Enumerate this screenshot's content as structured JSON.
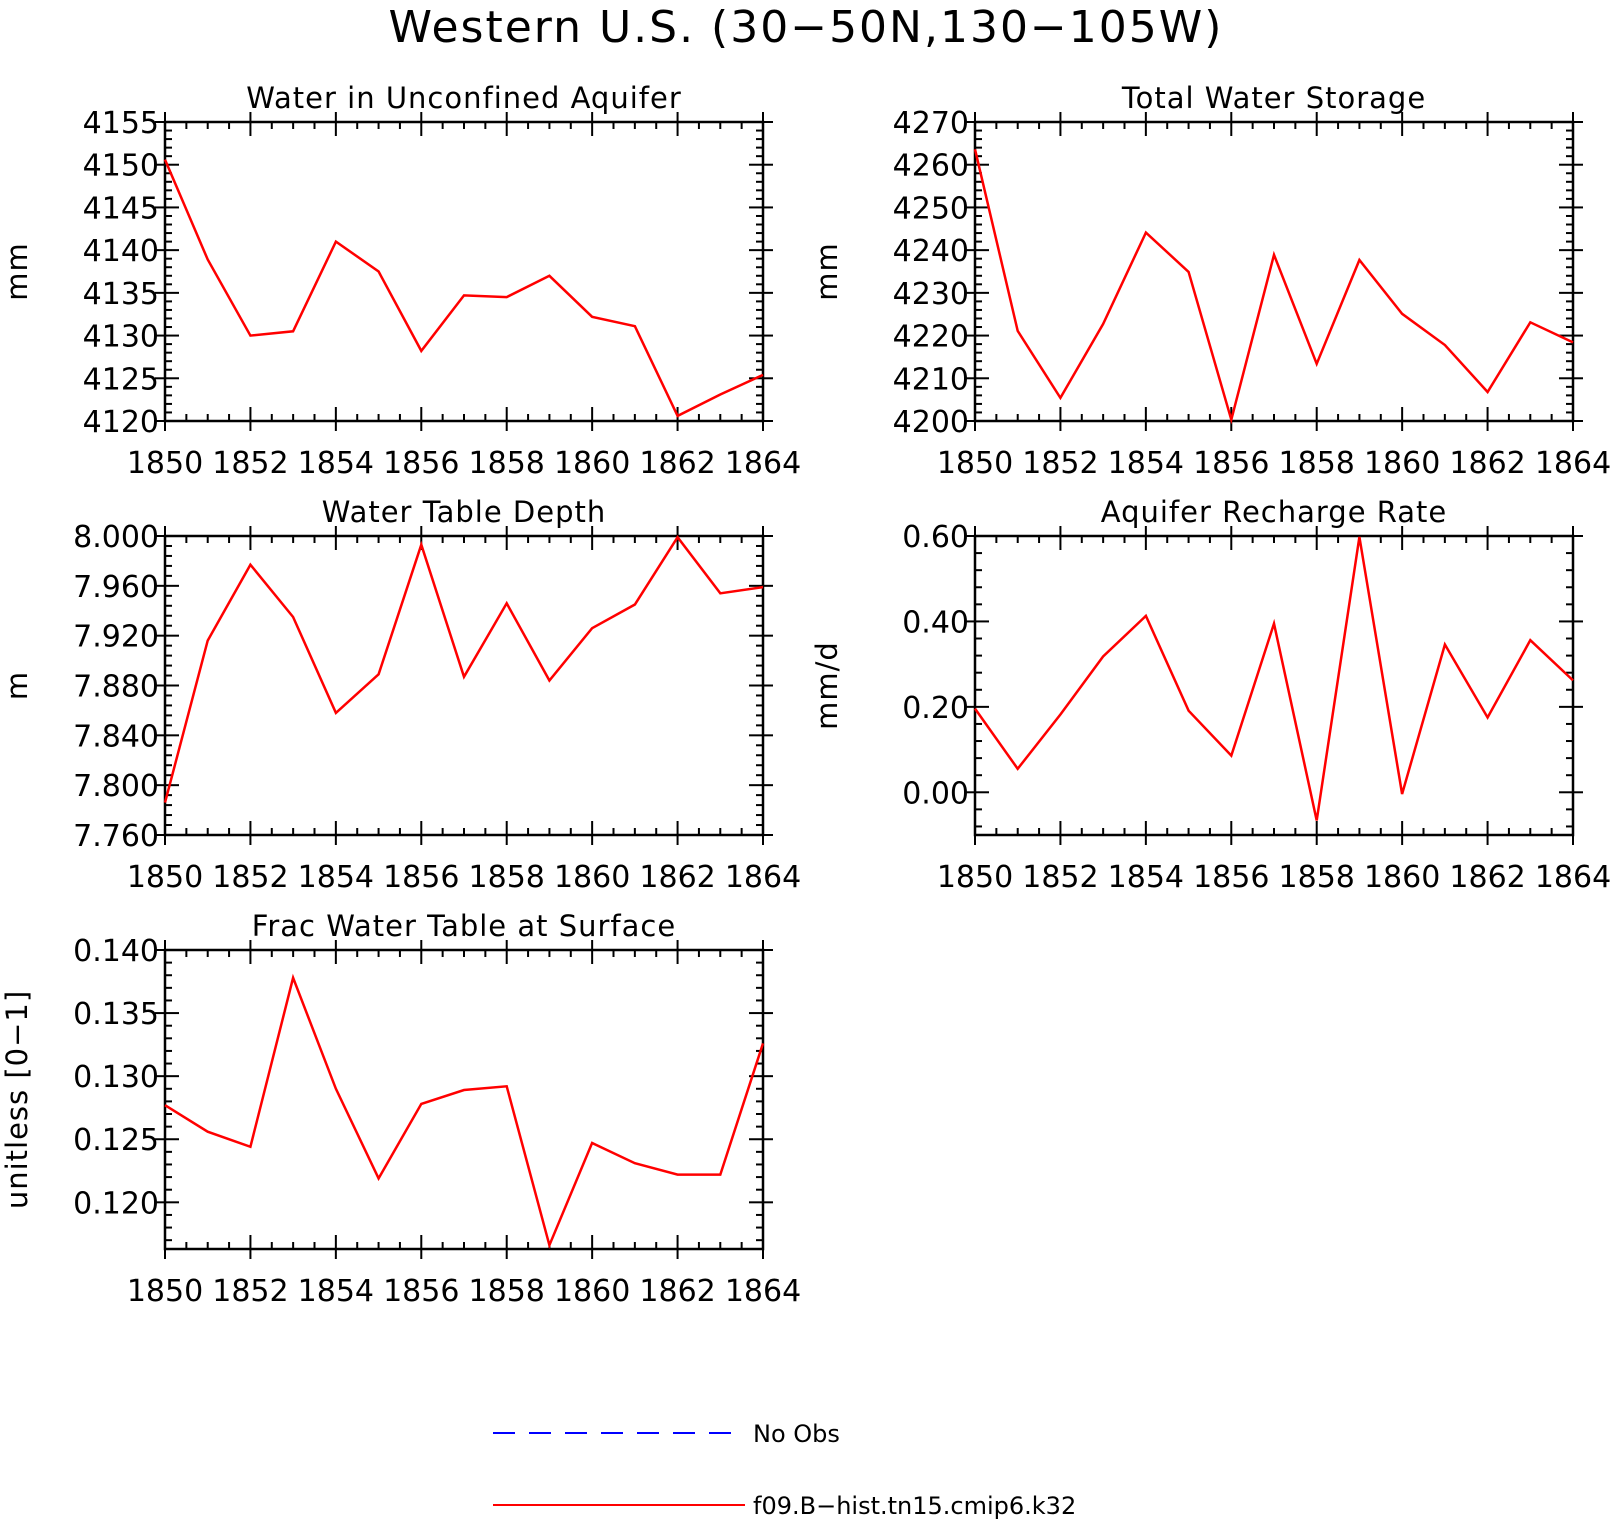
{
  "figure_title": "Western U.S. (30−50N,130−105W)",
  "colors": {
    "model": "#ff0000",
    "obs": "#0000ff",
    "axis": "#000000"
  },
  "legend": {
    "items": [
      {
        "label": "No Obs",
        "color": "#0000ff",
        "style": "dashed"
      },
      {
        "label": "f09.B−hist.tn15.cmip6.k32",
        "color": "#ff0000",
        "style": "solid"
      }
    ]
  },
  "chart_data": [
    {
      "type": "line",
      "title": "Water in Unconfined Aquifer",
      "ylabel": "mm",
      "xlabel": "",
      "x": [
        1850,
        1851,
        1852,
        1853,
        1854,
        1855,
        1856,
        1857,
        1858,
        1859,
        1860,
        1861,
        1862,
        1863,
        1864
      ],
      "xlim": [
        1850,
        1864
      ],
      "xticks": [
        "1850",
        "1852",
        "1854",
        "1856",
        "1858",
        "1860",
        "1862",
        "1864"
      ],
      "ylim": [
        4120,
        4155
      ],
      "yticks": [
        "4120",
        "4125",
        "4130",
        "4135",
        "4140",
        "4145",
        "4150",
        "4155"
      ],
      "series": [
        {
          "color": "#ff0000",
          "values": [
            4150.6,
            4138.9,
            4130.0,
            4130.5,
            4141.0,
            4137.5,
            4128.2,
            4134.7,
            4134.5,
            4137.0,
            4132.2,
            4131.1,
            4120.6,
            4123.1,
            4125.4
          ]
        }
      ]
    },
    {
      "type": "line",
      "title": "Total Water Storage",
      "ylabel": "mm",
      "xlabel": "",
      "x": [
        1850,
        1851,
        1852,
        1853,
        1854,
        1855,
        1856,
        1857,
        1858,
        1859,
        1860,
        1861,
        1862,
        1863,
        1864
      ],
      "xlim": [
        1850,
        1864
      ],
      "xticks": [
        "1850",
        "1852",
        "1854",
        "1856",
        "1858",
        "1860",
        "1862",
        "1864"
      ],
      "ylim": [
        4200,
        4270
      ],
      "yticks": [
        "4200",
        "4210",
        "4220",
        "4230",
        "4240",
        "4250",
        "4260",
        "4270"
      ],
      "series": [
        {
          "color": "#ff0000",
          "values": [
            4263.6,
            4221.1,
            4205.4,
            4222.7,
            4244.1,
            4234.9,
            4200.3,
            4238.9,
            4213.4,
            4237.7,
            4225.1,
            4217.8,
            4206.8,
            4223.1,
            4218.4
          ]
        }
      ]
    },
    {
      "type": "line",
      "title": "Water Table Depth",
      "ylabel": "m",
      "xlabel": "",
      "x": [
        1850,
        1851,
        1852,
        1853,
        1854,
        1855,
        1856,
        1857,
        1858,
        1859,
        1860,
        1861,
        1862,
        1863,
        1864
      ],
      "xlim": [
        1850,
        1864
      ],
      "xticks": [
        "1850",
        "1852",
        "1854",
        "1856",
        "1858",
        "1860",
        "1862",
        "1864"
      ],
      "ylim": [
        7.76,
        8.0
      ],
      "yticks": [
        "7.760",
        "7.800",
        "7.840",
        "7.880",
        "7.920",
        "7.960",
        "8.000"
      ],
      "series": [
        {
          "color": "#ff0000",
          "values": [
            7.786,
            7.916,
            7.977,
            7.935,
            7.858,
            7.889,
            7.993,
            7.887,
            7.946,
            7.884,
            7.926,
            7.945,
            7.999,
            7.954,
            7.959
          ]
        }
      ]
    },
    {
      "type": "line",
      "title": "Aquifer Recharge Rate",
      "ylabel": "mm/d",
      "xlabel": "",
      "x": [
        1850,
        1851,
        1852,
        1853,
        1854,
        1855,
        1856,
        1857,
        1858,
        1859,
        1860,
        1861,
        1862,
        1863,
        1864
      ],
      "xlim": [
        1850,
        1864
      ],
      "xticks": [
        "1850",
        "1852",
        "1854",
        "1856",
        "1858",
        "1860",
        "1862",
        "1864"
      ],
      "ylim": [
        -0.1,
        0.6
      ],
      "yticks": [
        "0.00",
        "0.20",
        "0.40",
        "0.60"
      ],
      "series": [
        {
          "color": "#ff0000",
          "values": [
            0.196,
            0.055,
            0.182,
            0.318,
            0.413,
            0.191,
            0.086,
            0.395,
            -0.066,
            0.598,
            -0.004,
            0.346,
            0.175,
            0.356,
            0.262
          ]
        }
      ]
    },
    {
      "type": "line",
      "title": "Frac Water Table at Surface",
      "ylabel": "unitless [0−1]",
      "xlabel": "",
      "x": [
        1850,
        1851,
        1852,
        1853,
        1854,
        1855,
        1856,
        1857,
        1858,
        1859,
        1860,
        1861,
        1862,
        1863,
        1864
      ],
      "xlim": [
        1850,
        1864
      ],
      "xticks": [
        "1850",
        "1852",
        "1854",
        "1856",
        "1858",
        "1860",
        "1862",
        "1864"
      ],
      "ylim": [
        0.1163,
        0.14
      ],
      "yticks": [
        "0.120",
        "0.125",
        "0.130",
        "0.135",
        "0.140"
      ],
      "series": [
        {
          "color": "#ff0000",
          "values": [
            0.1277,
            0.1256,
            0.1244,
            0.1378,
            0.129,
            0.1219,
            0.1278,
            0.1289,
            0.1292,
            0.1166,
            0.1247,
            0.1231,
            0.1222,
            0.1222,
            0.1326
          ]
        }
      ]
    }
  ]
}
